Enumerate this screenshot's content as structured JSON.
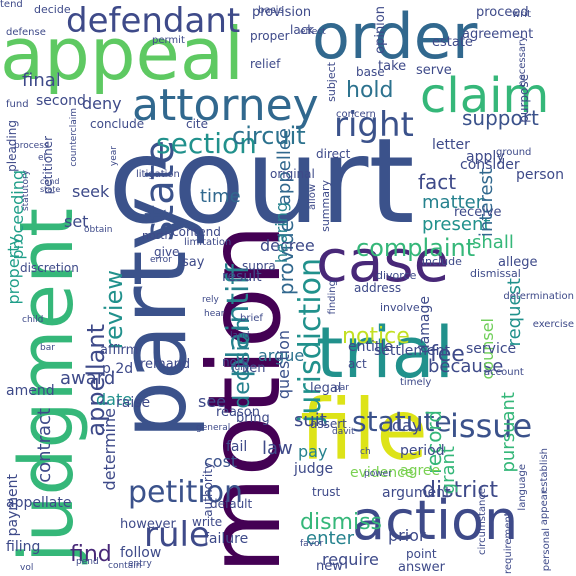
{
  "words": [
    {
      "text": "court",
      "color": "#3b528b",
      "vertical": false
    },
    {
      "text": "appeal",
      "color": "#5ec962",
      "vertical": false
    },
    {
      "text": "order",
      "color": "#31688e",
      "vertical": false
    },
    {
      "text": "party",
      "color": "#3b528b",
      "vertical": true
    },
    {
      "text": "motion",
      "color": "#440154",
      "vertical": true
    },
    {
      "text": "judgment",
      "color": "#35b779",
      "vertical": true
    },
    {
      "text": "trial",
      "color": "#21918c",
      "vertical": false
    },
    {
      "text": "case",
      "color": "#482878",
      "vertical": false
    },
    {
      "text": "file",
      "color": "#dde318",
      "vertical": false
    },
    {
      "text": "attorney",
      "color": "#31688e",
      "vertical": false
    },
    {
      "text": "claim",
      "color": "#35b779",
      "vertical": false
    },
    {
      "text": "action",
      "color": "#3e4a89",
      "vertical": false
    },
    {
      "text": "defendant",
      "color": "#3e4a89",
      "vertical": false
    },
    {
      "text": "state",
      "color": "#3b528b",
      "vertical": true
    },
    {
      "text": "right",
      "color": "#3b528b",
      "vertical": false
    },
    {
      "text": "issue",
      "color": "#3b528b",
      "vertical": false
    },
    {
      "text": "rule",
      "color": "#3e4a89",
      "vertical": false
    },
    {
      "text": "plaintiff",
      "color": "#26828e",
      "vertical": true
    },
    {
      "text": "jurisdiction",
      "color": "#21918c",
      "vertical": true
    },
    {
      "text": "petition",
      "color": "#3b528b",
      "vertical": false
    },
    {
      "text": "statute",
      "color": "#3b528b",
      "vertical": false
    },
    {
      "text": "section",
      "color": "#21918c",
      "vertical": false
    },
    {
      "text": "complaint",
      "color": "#35b779",
      "vertical": false
    },
    {
      "text": "notice",
      "color": "#c2df23",
      "vertical": false
    },
    {
      "text": "circuit",
      "color": "#2c728e",
      "vertical": false
    },
    {
      "text": "dismiss",
      "color": "#35b779",
      "vertical": false
    },
    {
      "text": "appellant",
      "color": "#3e4a89",
      "vertical": true
    },
    {
      "text": "review",
      "color": "#21918c",
      "vertical": true
    },
    {
      "text": "decision",
      "color": "#26828e",
      "vertical": true
    },
    {
      "text": "hold",
      "color": "#2c728e",
      "vertical": false
    },
    {
      "text": "support",
      "color": "#3b528b",
      "vertical": false
    },
    {
      "text": "fee",
      "color": "#3e4a89",
      "vertical": false
    },
    {
      "text": "find",
      "color": "#482878",
      "vertical": false
    },
    {
      "text": "district",
      "color": "#3e4a89",
      "vertical": false
    },
    {
      "text": "record",
      "color": "#35b779",
      "vertical": true
    },
    {
      "text": "provide",
      "color": "#31688e",
      "vertical": true
    },
    {
      "text": "fact",
      "color": "#3e4a89",
      "vertical": false
    },
    {
      "text": "matter",
      "color": "#26828e",
      "vertical": false
    },
    {
      "text": "present",
      "color": "#21918c",
      "vertical": false
    },
    {
      "text": "shall",
      "color": "#35b779",
      "vertical": false
    },
    {
      "text": "decree",
      "color": "#3e4a89",
      "vertical": false
    },
    {
      "text": "argue",
      "color": "#2c728e",
      "vertical": false
    },
    {
      "text": "because",
      "color": "#3e4a89",
      "vertical": false
    },
    {
      "text": "enter",
      "color": "#26828e",
      "vertical": false
    },
    {
      "text": "require",
      "color": "#3e4a89",
      "vertical": false
    },
    {
      "text": "law",
      "color": "#3e4a89",
      "vertical": false
    },
    {
      "text": "time",
      "color": "#31688e",
      "vertical": false
    },
    {
      "text": "seek",
      "color": "#3e4a89",
      "vertical": false
    },
    {
      "text": "award",
      "color": "#3e4a89",
      "vertical": false
    },
    {
      "text": "date",
      "color": "#21918c",
      "vertical": false
    },
    {
      "text": "grant",
      "color": "#35b779",
      "vertical": true
    },
    {
      "text": "interest",
      "color": "#31688e",
      "vertical": true
    },
    {
      "text": "request",
      "color": "#21918c",
      "vertical": true
    },
    {
      "text": "appellee",
      "color": "#31688e",
      "vertical": true
    },
    {
      "text": "hearing",
      "color": "#26828e",
      "vertical": true
    },
    {
      "text": "property",
      "color": "#1f9e89",
      "vertical": true
    },
    {
      "text": "proceeding",
      "color": "#1f9e89",
      "vertical": true
    },
    {
      "text": "contract",
      "color": "#3e4a89",
      "vertical": true
    },
    {
      "text": "pursuant",
      "color": "#35b779",
      "vertical": true
    },
    {
      "text": "question",
      "color": "#3b528b",
      "vertical": true
    },
    {
      "text": "counsel",
      "color": "#6ece58",
      "vertical": true
    },
    {
      "text": "determine",
      "color": "#3e4a89",
      "vertical": true
    },
    {
      "text": "set",
      "color": "#3e4a89",
      "vertical": false
    },
    {
      "text": "day",
      "color": "#3e4a89",
      "vertical": false
    },
    {
      "text": "see",
      "color": "#3e4a89",
      "vertical": false
    },
    {
      "text": "pay",
      "color": "#26828e",
      "vertical": false
    },
    {
      "text": "suit",
      "color": "#3e4a89",
      "vertical": false
    },
    {
      "text": "final",
      "color": "#3e4a89",
      "vertical": false
    },
    {
      "text": "deny",
      "color": "#3e4a89",
      "vertical": false
    },
    {
      "text": "cost",
      "color": "#3b528b",
      "vertical": false
    },
    {
      "text": "fail",
      "color": "#3e4a89",
      "vertical": false
    },
    {
      "text": "judge",
      "color": "#3e4a89",
      "vertical": false
    },
    {
      "text": "agree",
      "color": "#7ad151",
      "vertical": false
    },
    {
      "text": "period",
      "color": "#3e4a89",
      "vertical": false
    },
    {
      "text": "prior",
      "color": "#3e4a89",
      "vertical": false
    },
    {
      "text": "evidence",
      "color": "#7ad151",
      "vertical": false
    },
    {
      "text": "argument",
      "color": "#3e4a89",
      "vertical": false
    },
    {
      "text": "entitle",
      "color": "#3e4a89",
      "vertical": false
    },
    {
      "text": "settlement",
      "color": "#3e4a89",
      "vertical": false
    },
    {
      "text": "service",
      "color": "#3e4a89",
      "vertical": false
    },
    {
      "text": "damage",
      "color": "#3e4a89",
      "vertical": true
    },
    {
      "text": "payment",
      "color": "#3e4a89",
      "vertical": true
    },
    {
      "text": "appellate",
      "color": "#3e4a89",
      "vertical": false
    },
    {
      "text": "filing",
      "color": "#3e4a89",
      "vertical": false
    },
    {
      "text": "follow",
      "color": "#3e4a89",
      "vertical": false
    },
    {
      "text": "however",
      "color": "#3e4a89",
      "vertical": false
    },
    {
      "text": "failure",
      "color": "#3e4a89",
      "vertical": false
    },
    {
      "text": "amend",
      "color": "#3e4a89",
      "vertical": false
    },
    {
      "text": "p.2d",
      "color": "#3e4a89",
      "vertical": false
    },
    {
      "text": "affirm",
      "color": "#3e4a89",
      "vertical": false
    },
    {
      "text": "remand",
      "color": "#3e4a89",
      "vertical": false
    },
    {
      "text": "raise",
      "color": "#3e4a89",
      "vertical": false
    },
    {
      "text": "result",
      "color": "#3e4a89",
      "vertical": false
    },
    {
      "text": "reason",
      "color": "#3e4a89",
      "vertical": false
    },
    {
      "text": "bring",
      "color": "#3e4a89",
      "vertical": false
    },
    {
      "text": "lien",
      "color": "#3e4a89",
      "vertical": false
    },
    {
      "text": "say",
      "color": "#3e4a89",
      "vertical": false
    },
    {
      "text": "receive",
      "color": "#3e4a89",
      "vertical": false
    },
    {
      "text": "allege",
      "color": "#3e4a89",
      "vertical": false
    },
    {
      "text": "consider",
      "color": "#3e4a89",
      "vertical": false
    },
    {
      "text": "letter",
      "color": "#3e4a89",
      "vertical": false
    },
    {
      "text": "apply",
      "color": "#3e4a89",
      "vertical": false
    },
    {
      "text": "person",
      "color": "#3e4a89",
      "vertical": false
    },
    {
      "text": "proceed",
      "color": "#3e4a89",
      "vertical": false
    },
    {
      "text": "opinion",
      "color": "#3e4a89",
      "vertical": true
    },
    {
      "text": "provision",
      "color": "#3e4a89",
      "vertical": false
    },
    {
      "text": "agreement",
      "color": "#3e4a89",
      "vertical": false
    },
    {
      "text": "estate",
      "color": "#3e4a89",
      "vertical": false
    },
    {
      "text": "serve",
      "color": "#3e4a89",
      "vertical": false
    },
    {
      "text": "take",
      "color": "#3e4a89",
      "vertical": false
    },
    {
      "text": "base",
      "color": "#3e4a89",
      "vertical": false
    },
    {
      "text": "relief",
      "color": "#3e4a89",
      "vertical": false
    },
    {
      "text": "lack",
      "color": "#3e4a89",
      "vertical": false
    },
    {
      "text": "subject",
      "color": "#3e4a89",
      "vertical": true
    },
    {
      "text": "purpose",
      "color": "#3e4a89",
      "vertical": true
    },
    {
      "text": "proper",
      "color": "#3e4a89",
      "vertical": false
    },
    {
      "text": "decide",
      "color": "#3e4a89",
      "vertical": false
    },
    {
      "text": "second",
      "color": "#3e4a89",
      "vertical": false
    },
    {
      "text": "conclude",
      "color": "#3e4a89",
      "vertical": false
    },
    {
      "text": "pleading",
      "color": "#3e4a89",
      "vertical": true
    },
    {
      "text": "petitioner",
      "color": "#3e4a89",
      "vertical": true
    },
    {
      "text": "cite",
      "color": "#3e4a89",
      "vertical": false
    },
    {
      "text": "direct",
      "color": "#3e4a89",
      "vertical": false
    },
    {
      "text": "original",
      "color": "#3e4a89",
      "vertical": false
    },
    {
      "text": "north",
      "color": "#3e4a89",
      "vertical": false
    },
    {
      "text": "contend",
      "color": "#3e4a89",
      "vertical": false
    },
    {
      "text": "give",
      "color": "#3e4a89",
      "vertical": false
    },
    {
      "text": "supra",
      "color": "#3e4a89",
      "vertical": false
    },
    {
      "text": "divorce",
      "color": "#3e4a89",
      "vertical": false
    },
    {
      "text": "include",
      "color": "#3e4a89",
      "vertical": false
    },
    {
      "text": "dismissal",
      "color": "#3e4a89",
      "vertical": false
    },
    {
      "text": "address",
      "color": "#3e4a89",
      "vertical": false
    },
    {
      "text": "involve",
      "color": "#3e4a89",
      "vertical": false
    },
    {
      "text": "note",
      "color": "#3e4a89",
      "vertical": false
    },
    {
      "text": "act",
      "color": "#3e4a89",
      "vertical": false
    },
    {
      "text": "legal",
      "color": "#3e4a89",
      "vertical": false
    },
    {
      "text": "assert",
      "color": "#3e4a89",
      "vertical": false
    },
    {
      "text": "authority",
      "color": "#3e4a89",
      "vertical": true
    },
    {
      "text": "default",
      "color": "#3e4a89",
      "vertical": false
    },
    {
      "text": "write",
      "color": "#3e4a89",
      "vertical": false
    },
    {
      "text": "trust",
      "color": "#3e4a89",
      "vertical": false
    },
    {
      "text": "point",
      "color": "#3e4a89",
      "vertical": false
    },
    {
      "text": "new",
      "color": "#3e4a89",
      "vertical": false
    },
    {
      "text": "answer",
      "color": "#3e4a89",
      "vertical": false
    },
    {
      "text": "discretion",
      "color": "#3e4a89",
      "vertical": false
    },
    {
      "text": "limitation",
      "color": "#3e4a89",
      "vertical": false
    },
    {
      "text": "litigation",
      "color": "#3e4a89",
      "vertical": false
    },
    {
      "text": "summary",
      "color": "#3e4a89",
      "vertical": true
    },
    {
      "text": "finding",
      "color": "#3e4a89",
      "vertical": true
    },
    {
      "text": "allow",
      "color": "#3e4a89",
      "vertical": true
    },
    {
      "text": "year",
      "color": "#3e4a89",
      "vertical": true
    },
    {
      "text": "concern",
      "color": "#3e4a89",
      "vertical": false
    },
    {
      "text": "timely",
      "color": "#3e4a89",
      "vertical": false
    },
    {
      "text": "account",
      "color": "#3e4a89",
      "vertical": false
    },
    {
      "text": "exercise",
      "color": "#3e4a89",
      "vertical": false
    },
    {
      "text": "determination",
      "color": "#3e4a89",
      "vertical": false
    },
    {
      "text": "establish",
      "color": "#3e4a89",
      "vertical": true
    },
    {
      "text": "personal",
      "color": "#3e4a89",
      "vertical": true
    },
    {
      "text": "appear",
      "color": "#3e4a89",
      "vertical": true
    },
    {
      "text": "language",
      "color": "#3e4a89",
      "vertical": true
    },
    {
      "text": "circumstance",
      "color": "#3e4a89",
      "vertical": true
    },
    {
      "text": "requirement",
      "color": "#3e4a89",
      "vertical": true
    },
    {
      "text": "ground",
      "color": "#3e4a89",
      "vertical": false
    },
    {
      "text": "necessary",
      "color": "#3e4a89",
      "vertical": true
    },
    {
      "text": "writ",
      "color": "#3e4a89",
      "vertical": false
    },
    {
      "text": "defense",
      "color": "#3e4a89",
      "vertical": false
    },
    {
      "text": "basis",
      "color": "#3e4a89",
      "vertical": false
    },
    {
      "text": "permit",
      "color": "#3e4a89",
      "vertical": false
    },
    {
      "text": "effect",
      "color": "#3e4a89",
      "vertical": false
    },
    {
      "text": "fund",
      "color": "#3e4a89",
      "vertical": false
    },
    {
      "text": "counterclaim",
      "color": "#3e4a89",
      "vertical": true
    },
    {
      "text": "statutory",
      "color": "#3e4a89",
      "vertical": true
    },
    {
      "text": "jury",
      "color": "#3e4a89",
      "vertical": false
    },
    {
      "text": "brief",
      "color": "#3e4a89",
      "vertical": false
    },
    {
      "text": "land",
      "color": "#3e4a89",
      "vertical": false
    },
    {
      "text": "rely",
      "color": "#3e4a89",
      "vertical": false
    },
    {
      "text": "child",
      "color": "#3e4a89",
      "vertical": false
    },
    {
      "text": "bar",
      "color": "#3e4a89",
      "vertical": false
    },
    {
      "text": "hear",
      "color": "#3e4a89",
      "vertical": false
    },
    {
      "text": "obtain",
      "color": "#3e4a89",
      "vertical": false
    },
    {
      "text": "error",
      "color": "#3e4a89",
      "vertical": false
    },
    {
      "text": "general",
      "color": "#3e4a89",
      "vertical": false
    },
    {
      "text": "davit",
      "color": "#3e4a89",
      "vertical": false
    },
    {
      "text": "ch",
      "color": "#3e4a89",
      "vertical": false
    },
    {
      "text": "power",
      "color": "#3e4a89",
      "vertical": false
    },
    {
      "text": "par",
      "color": "#3e4a89",
      "vertical": false
    },
    {
      "text": "favor",
      "color": "#3e4a89",
      "vertical": false
    },
    {
      "text": "entry",
      "color": "#3e4a89",
      "vertical": false
    },
    {
      "text": "contain",
      "color": "#3e4a89",
      "vertical": false
    },
    {
      "text": "pend",
      "color": "#3e4a89",
      "vertical": false
    },
    {
      "text": "vol",
      "color": "#3e4a89",
      "vertical": false
    },
    {
      "text": "process",
      "color": "#3e4a89",
      "vertical": false
    },
    {
      "text": "el",
      "color": "#3e4a89",
      "vertical": false
    },
    {
      "text": "cond",
      "color": "#3e4a89",
      "vertical": false
    },
    {
      "text": "state",
      "color": "#3e4a89",
      "vertical": false
    },
    {
      "text": "tend",
      "color": "#3e4a89",
      "vertical": false
    }
  ]
}
